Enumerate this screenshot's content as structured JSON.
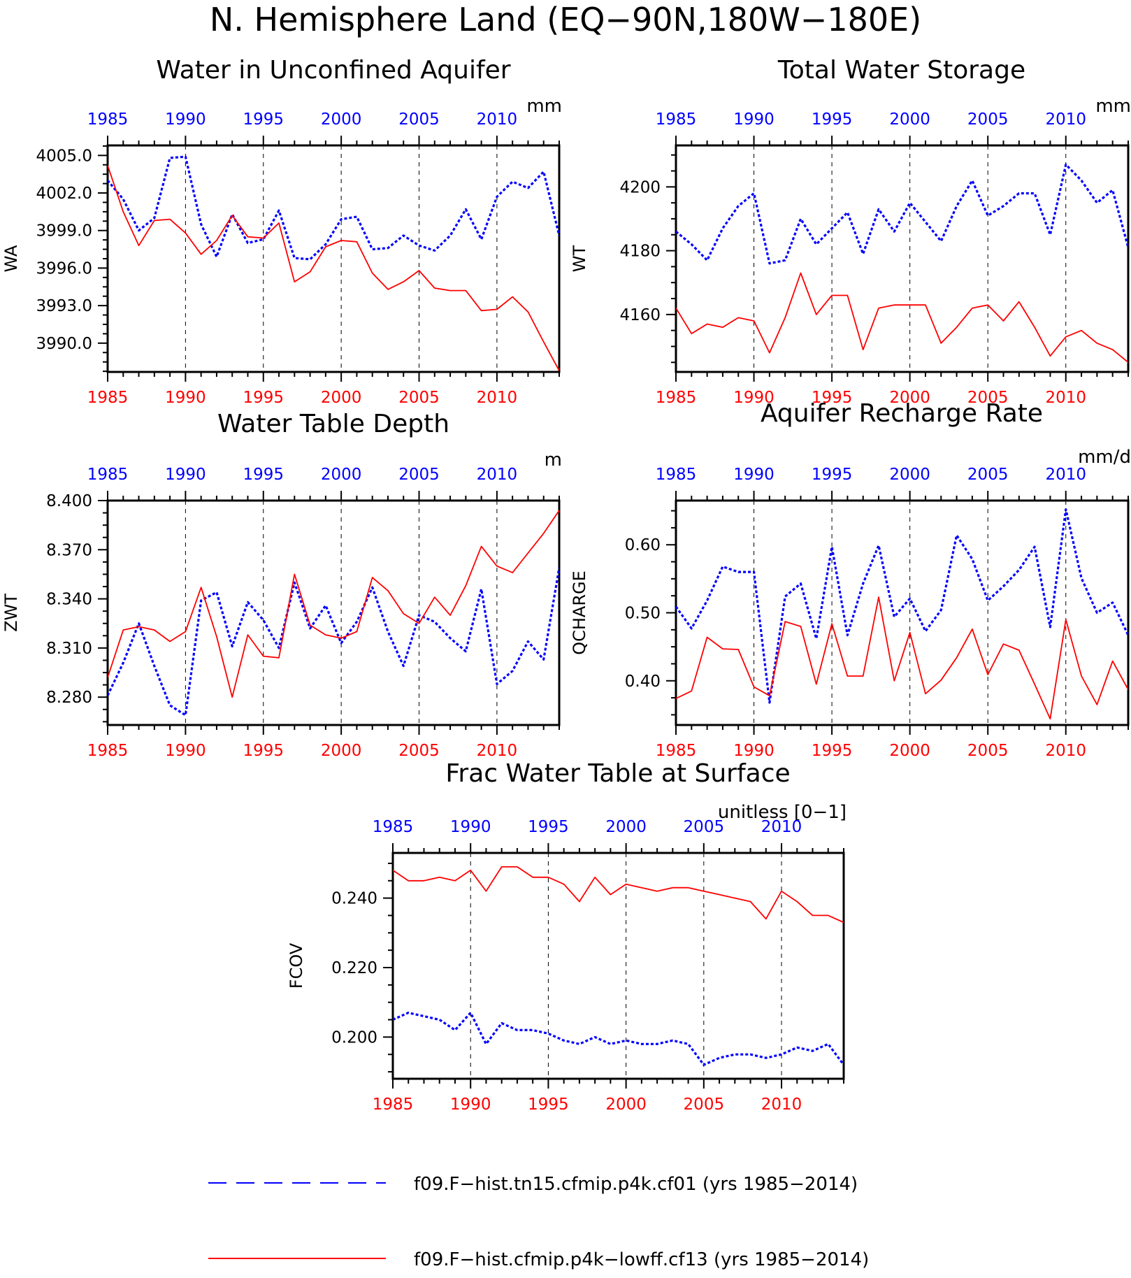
{
  "figure": {
    "title": "N. Hemisphere Land (EQ−90N,180W−180E)"
  },
  "legend": {
    "placement": "bottom",
    "entries": [
      {
        "label": "f09.F−hist.tn15.cfmip.p4k.cf01 (yrs 1985−2014)",
        "color": "#0000ff",
        "style": "dashed"
      },
      {
        "label": "f09.F−hist.cfmip.p4k−lowff.cf13 (yrs 1985−2014)",
        "color": "#ff0000",
        "style": "solid"
      }
    ]
  },
  "colors": {
    "blue": "#0000ff",
    "red": "#ff0000"
  },
  "chart_data": [
    {
      "type": "line",
      "title": "Water in Unconfined Aquifer",
      "ylabel": "WA",
      "units": "mm",
      "xlim": [
        1985,
        2014
      ],
      "ylim": [
        3987.7,
        4005.8
      ],
      "yticks": [
        3990.0,
        3993.0,
        3996.0,
        3999.0,
        4002.0,
        4005.0
      ],
      "ytick_labels": [
        "3990.0",
        "3993.0",
        "3996.0",
        "3999.0",
        "4002.0",
        "4005.0"
      ],
      "xticks": [
        1985,
        1990,
        1995,
        2000,
        2005,
        2010
      ],
      "xtick_labels": [
        "1985",
        "1990",
        "1995",
        "2000",
        "2005",
        "2010"
      ],
      "series": [
        {
          "color": "#0000ff",
          "style": "dashed",
          "values": [
            4003.0,
            4001.5,
            3999.0,
            4000.0,
            4004.8,
            4004.9,
            3999.5,
            3996.9,
            4000.3,
            3998.0,
            3998.3,
            4000.6,
            3996.8,
            3996.7,
            3997.9,
            3999.9,
            4000.1,
            3997.5,
            3997.6,
            3998.6,
            3997.8,
            3997.4,
            3998.6,
            4000.7,
            3998.3,
            4001.7,
            4002.9,
            4002.4,
            4003.7,
            3998.6
          ]
        },
        {
          "color": "#ff0000",
          "style": "solid",
          "values": [
            4004.2,
            4000.5,
            3997.8,
            3999.8,
            3999.9,
            3998.8,
            3997.1,
            3998.2,
            4000.2,
            3998.5,
            3998.4,
            3999.6,
            3994.9,
            3995.7,
            3997.7,
            3998.2,
            3998.1,
            3995.6,
            3994.3,
            3994.9,
            3995.8,
            3994.4,
            3994.2,
            3994.2,
            3992.6,
            3992.7,
            3993.7,
            3992.5,
            3990.1,
            3987.8
          ]
        }
      ]
    },
    {
      "type": "line",
      "title": "Total Water Storage",
      "ylabel": "WT",
      "units": "mm",
      "xlim": [
        1985,
        2014
      ],
      "ylim": [
        4142.0,
        4213.0
      ],
      "yticks": [
        4160,
        4180,
        4200
      ],
      "ytick_labels": [
        "4160",
        "4180",
        "4200"
      ],
      "xticks": [
        1985,
        1990,
        1995,
        2000,
        2005,
        2010
      ],
      "xtick_labels": [
        "1985",
        "1990",
        "1995",
        "2000",
        "2005",
        "2010"
      ],
      "series": [
        {
          "color": "#0000ff",
          "style": "dashed",
          "values": [
            4186,
            4182,
            4177,
            4187,
            4194,
            4198,
            4176,
            4177,
            4190,
            4182,
            4187,
            4192,
            4179,
            4193,
            4186,
            4195,
            4189,
            4183,
            4194,
            4202,
            4191,
            4194,
            4198,
            4198,
            4185,
            4207,
            4202,
            4195,
            4199,
            4181
          ]
        },
        {
          "color": "#ff0000",
          "style": "solid",
          "values": [
            4162,
            4154,
            4157,
            4156,
            4159,
            4158,
            4148,
            4159,
            4173,
            4160,
            4166,
            4166,
            4149,
            4162,
            4163,
            4163,
            4163,
            4151,
            4156,
            4162,
            4163,
            4158,
            4164,
            4156,
            4147,
            4153,
            4155,
            4151,
            4149,
            4145
          ]
        }
      ]
    },
    {
      "type": "line",
      "title": "Water Table Depth",
      "ylabel": "ZWT",
      "units": "m",
      "xlim": [
        1985,
        2014
      ],
      "ylim": [
        8.263,
        8.4
      ],
      "yticks": [
        8.28,
        8.31,
        8.34,
        8.37,
        8.4
      ],
      "ytick_labels": [
        "8.280",
        "8.310",
        "8.340",
        "8.370",
        "8.400"
      ],
      "xticks": [
        1985,
        1990,
        1995,
        2000,
        2005,
        2010
      ],
      "xtick_labels": [
        "1985",
        "1990",
        "1995",
        "2000",
        "2005",
        "2010"
      ],
      "series": [
        {
          "color": "#0000ff",
          "style": "dashed",
          "values": [
            8.281,
            8.301,
            8.325,
            8.299,
            8.275,
            8.269,
            8.339,
            8.344,
            8.311,
            8.338,
            8.327,
            8.31,
            8.35,
            8.322,
            8.336,
            8.313,
            8.326,
            8.347,
            8.32,
            8.299,
            8.33,
            8.326,
            8.316,
            8.308,
            8.346,
            8.288,
            8.296,
            8.314,
            8.303,
            8.359
          ]
        },
        {
          "color": "#ff0000",
          "style": "solid",
          "values": [
            8.292,
            8.321,
            8.323,
            8.321,
            8.314,
            8.32,
            8.347,
            8.317,
            8.28,
            8.318,
            8.305,
            8.304,
            8.355,
            8.324,
            8.318,
            8.316,
            8.32,
            8.353,
            8.345,
            8.331,
            8.325,
            8.341,
            8.33,
            8.348,
            8.372,
            8.36,
            8.356,
            8.368,
            8.38,
            8.394
          ]
        }
      ]
    },
    {
      "type": "line",
      "title": "Aquifer Recharge Rate",
      "ylabel": "QCHARGE",
      "units": "mm/d",
      "xlim": [
        1985,
        2014
      ],
      "ylim": [
        0.335,
        0.665
      ],
      "yticks": [
        0.4,
        0.5,
        0.6
      ],
      "ytick_labels": [
        "0.40",
        "0.50",
        "0.60"
      ],
      "xticks": [
        1985,
        1990,
        1995,
        2000,
        2005,
        2010
      ],
      "xtick_labels": [
        "1985",
        "1990",
        "1995",
        "2000",
        "2005",
        "2010"
      ],
      "series": [
        {
          "color": "#0000ff",
          "style": "dashed",
          "values": [
            0.509,
            0.477,
            0.518,
            0.568,
            0.56,
            0.56,
            0.368,
            0.524,
            0.543,
            0.462,
            0.597,
            0.467,
            0.543,
            0.599,
            0.494,
            0.521,
            0.473,
            0.504,
            0.614,
            0.579,
            0.518,
            0.539,
            0.563,
            0.597,
            0.479,
            0.652,
            0.551,
            0.5,
            0.515,
            0.467
          ]
        },
        {
          "color": "#ff0000",
          "style": "solid",
          "values": [
            0.374,
            0.385,
            0.464,
            0.447,
            0.446,
            0.391,
            0.378,
            0.487,
            0.48,
            0.395,
            0.484,
            0.407,
            0.407,
            0.523,
            0.4,
            0.471,
            0.381,
            0.401,
            0.434,
            0.476,
            0.409,
            0.454,
            0.445,
            0.395,
            0.344,
            0.49,
            0.407,
            0.365,
            0.429,
            0.387
          ]
        }
      ]
    },
    {
      "type": "line",
      "title": "Frac Water Table at Surface",
      "ylabel": "FCOV",
      "units": "unitless [0−1]",
      "xlim": [
        1985,
        2014
      ],
      "ylim": [
        0.188,
        0.253
      ],
      "yticks": [
        0.2,
        0.22,
        0.24
      ],
      "ytick_labels": [
        "0.200",
        "0.220",
        "0.240"
      ],
      "xticks": [
        1985,
        1990,
        1995,
        2000,
        2005,
        2010
      ],
      "xtick_labels": [
        "1985",
        "1990",
        "1995",
        "2000",
        "2005",
        "2010"
      ],
      "series": [
        {
          "color": "#0000ff",
          "style": "dashed",
          "values": [
            0.205,
            0.207,
            0.206,
            0.205,
            0.202,
            0.207,
            0.198,
            0.204,
            0.202,
            0.202,
            0.201,
            0.199,
            0.198,
            0.2,
            0.198,
            0.199,
            0.198,
            0.198,
            0.199,
            0.198,
            0.192,
            0.194,
            0.195,
            0.195,
            0.194,
            0.195,
            0.197,
            0.196,
            0.198,
            0.192
          ]
        },
        {
          "color": "#ff0000",
          "style": "solid",
          "values": [
            0.248,
            0.245,
            0.245,
            0.246,
            0.245,
            0.248,
            0.242,
            0.249,
            0.249,
            0.246,
            0.246,
            0.244,
            0.239,
            0.246,
            0.241,
            0.244,
            0.243,
            0.242,
            0.243,
            0.243,
            0.242,
            0.241,
            0.24,
            0.239,
            0.234,
            0.242,
            0.239,
            0.235,
            0.235,
            0.233
          ]
        }
      ]
    }
  ]
}
